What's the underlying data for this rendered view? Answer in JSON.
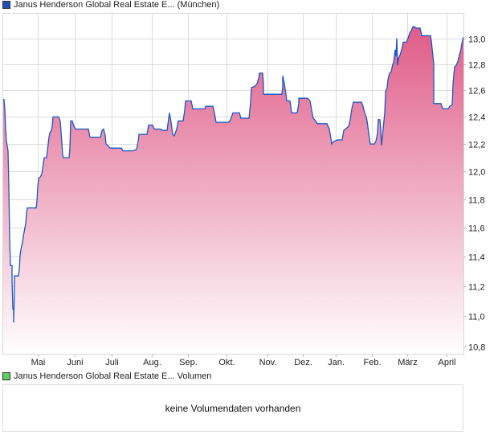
{
  "legend": {
    "price_label": "Janus Henderson Global Real Estate E... (München)",
    "price_color": "#1f4fb8",
    "volume_label": "Janus Henderson Global Real Estate E... Volumen",
    "volume_color": "#5fcf5f"
  },
  "volume": {
    "empty_message": "keine Volumendaten vorhanden"
  },
  "chart_data": {
    "type": "area",
    "title": "Janus Henderson Global Real Estate E... (München)",
    "xlabel": "",
    "ylabel": "",
    "y_scale": "log",
    "ylim": [
      10.75,
      13.2
    ],
    "xlim": [
      0,
      574
    ],
    "grid": true,
    "line_color": "#1a56c8",
    "fill_top_color": "#e05c88",
    "fill_bottom_color": "#ffffff",
    "y_ticks": [
      {
        "value": 10.8,
        "label": "10,8"
      },
      {
        "value": 11.0,
        "label": "11,0"
      },
      {
        "value": 11.2,
        "label": "11,2"
      },
      {
        "value": 11.4,
        "label": "11,4"
      },
      {
        "value": 11.6,
        "label": "11,6"
      },
      {
        "value": 11.8,
        "label": "11,8"
      },
      {
        "value": 12.0,
        "label": "12,0"
      },
      {
        "value": 12.2,
        "label": "12,2"
      },
      {
        "value": 12.4,
        "label": "12,4"
      },
      {
        "value": 12.6,
        "label": "12,6"
      },
      {
        "value": 12.8,
        "label": "12,8"
      },
      {
        "value": 13.0,
        "label": "13,0"
      }
    ],
    "x_ticks": [
      {
        "x": 44,
        "label": "Mai"
      },
      {
        "x": 90,
        "label": "Juni"
      },
      {
        "x": 136,
        "label": "Juli"
      },
      {
        "x": 186,
        "label": "Aug."
      },
      {
        "x": 231,
        "label": "Sep."
      },
      {
        "x": 279,
        "label": "Okt."
      },
      {
        "x": 330,
        "label": "Nov."
      },
      {
        "x": 374,
        "label": "Dez."
      },
      {
        "x": 415,
        "label": "Jan."
      },
      {
        "x": 460,
        "label": "Feb."
      },
      {
        "x": 504,
        "label": "März"
      },
      {
        "x": 553,
        "label": "April"
      }
    ],
    "points": [
      [
        0,
        12.53
      ],
      [
        2,
        12.53
      ],
      [
        3,
        12.46
      ],
      [
        4,
        12.31
      ],
      [
        5,
        12.22
      ],
      [
        7,
        12.15
      ],
      [
        8,
        11.89
      ],
      [
        9,
        11.52
      ],
      [
        10,
        11.34
      ],
      [
        12,
        11.34
      ],
      [
        12,
        11.24
      ],
      [
        13,
        11.05
      ],
      [
        14,
        11.04
      ],
      [
        14,
        10.96
      ],
      [
        15,
        11.19
      ],
      [
        15,
        11.27
      ],
      [
        20,
        11.27
      ],
      [
        21,
        11.31
      ],
      [
        22,
        11.41
      ],
      [
        23,
        11.45
      ],
      [
        25,
        11.5
      ],
      [
        26,
        11.54
      ],
      [
        27,
        11.57
      ],
      [
        29,
        11.63
      ],
      [
        30,
        11.7
      ],
      [
        31,
        11.74
      ],
      [
        42,
        11.74
      ],
      [
        43,
        11.79
      ],
      [
        44,
        11.89
      ],
      [
        45,
        11.95
      ],
      [
        47,
        11.96
      ],
      [
        49,
        11.98
      ],
      [
        50,
        12.02
      ],
      [
        52,
        12.1
      ],
      [
        55,
        12.1
      ],
      [
        56,
        12.15
      ],
      [
        57,
        12.2
      ],
      [
        58,
        12.25
      ],
      [
        59,
        12.28
      ],
      [
        61,
        12.3
      ],
      [
        62,
        12.33
      ],
      [
        63,
        12.4
      ],
      [
        70,
        12.4
      ],
      [
        72,
        12.37
      ],
      [
        74,
        12.21
      ],
      [
        75,
        12.12
      ],
      [
        76,
        12.1
      ],
      [
        83,
        12.1
      ],
      [
        84,
        12.17
      ],
      [
        85,
        12.37
      ],
      [
        87,
        12.37
      ],
      [
        89,
        12.33
      ],
      [
        91,
        12.31
      ],
      [
        107,
        12.31
      ],
      [
        109,
        12.25
      ],
      [
        122,
        12.25
      ],
      [
        124,
        12.3
      ],
      [
        126,
        12.31
      ],
      [
        128,
        12.26
      ],
      [
        129,
        12.2
      ],
      [
        131,
        12.19
      ],
      [
        134,
        12.17
      ],
      [
        148,
        12.17
      ],
      [
        150,
        12.15
      ],
      [
        157,
        12.15
      ],
      [
        162,
        12.15
      ],
      [
        167,
        12.16
      ],
      [
        169,
        12.22
      ],
      [
        170,
        12.27
      ],
      [
        180,
        12.27
      ],
      [
        182,
        12.34
      ],
      [
        187,
        12.34
      ],
      [
        189,
        12.31
      ],
      [
        197,
        12.31
      ],
      [
        199,
        12.3
      ],
      [
        205,
        12.3
      ],
      [
        207,
        12.39
      ],
      [
        208,
        12.43
      ],
      [
        210,
        12.36
      ],
      [
        212,
        12.27
      ],
      [
        214,
        12.26
      ],
      [
        217,
        12.31
      ],
      [
        219,
        12.37
      ],
      [
        225,
        12.37
      ],
      [
        227,
        12.45
      ],
      [
        228,
        12.52
      ],
      [
        235,
        12.52
      ],
      [
        237,
        12.46
      ],
      [
        252,
        12.46
      ],
      [
        253,
        12.48
      ],
      [
        262,
        12.48
      ],
      [
        264,
        12.43
      ],
      [
        266,
        12.36
      ],
      [
        282,
        12.36
      ],
      [
        284,
        12.38
      ],
      [
        287,
        12.43
      ],
      [
        295,
        12.43
      ],
      [
        297,
        12.39
      ],
      [
        307,
        12.39
      ],
      [
        309,
        12.51
      ],
      [
        310,
        12.62
      ],
      [
        314,
        12.63
      ],
      [
        317,
        12.65
      ],
      [
        319,
        12.69
      ],
      [
        320,
        12.73
      ],
      [
        324,
        12.73
      ],
      [
        325,
        12.65
      ],
      [
        325,
        12.57
      ],
      [
        348,
        12.57
      ],
      [
        349,
        12.63
      ],
      [
        349,
        12.71
      ],
      [
        351,
        12.65
      ],
      [
        353,
        12.57
      ],
      [
        354,
        12.52
      ],
      [
        358,
        12.52
      ],
      [
        359,
        12.48
      ],
      [
        360,
        12.43
      ],
      [
        367,
        12.43
      ],
      [
        369,
        12.5
      ],
      [
        369,
        12.54
      ],
      [
        380,
        12.54
      ],
      [
        383,
        12.52
      ],
      [
        385,
        12.45
      ],
      [
        387,
        12.39
      ],
      [
        390,
        12.37
      ],
      [
        392,
        12.35
      ],
      [
        404,
        12.35
      ],
      [
        407,
        12.31
      ],
      [
        409,
        12.24
      ],
      [
        410,
        12.2
      ],
      [
        411,
        12.21
      ],
      [
        413,
        12.22
      ],
      [
        417,
        12.23
      ],
      [
        423,
        12.23
      ],
      [
        425,
        12.3
      ],
      [
        427,
        12.31
      ],
      [
        431,
        12.33
      ],
      [
        433,
        12.38
      ],
      [
        435,
        12.46
      ],
      [
        437,
        12.51
      ],
      [
        447,
        12.51
      ],
      [
        449,
        12.48
      ],
      [
        451,
        12.43
      ],
      [
        453,
        12.4
      ],
      [
        454,
        12.37
      ],
      [
        456,
        12.28
      ],
      [
        457,
        12.24
      ],
      [
        458,
        12.2
      ],
      [
        463,
        12.2
      ],
      [
        465,
        12.22
      ],
      [
        467,
        12.28
      ],
      [
        468,
        12.38
      ],
      [
        470,
        12.38
      ],
      [
        471,
        12.31
      ],
      [
        472,
        12.19
      ],
      [
        474,
        12.31
      ],
      [
        476,
        12.43
      ],
      [
        477,
        12.59
      ],
      [
        479,
        12.62
      ],
      [
        480,
        12.68
      ],
      [
        482,
        12.73
      ],
      [
        484,
        12.74
      ],
      [
        486,
        12.8
      ],
      [
        487,
        12.81
      ],
      [
        489,
        12.91
      ],
      [
        490,
        12.86
      ],
      [
        491,
        13.0
      ],
      [
        492,
        12.79
      ],
      [
        493,
        12.84
      ],
      [
        495,
        12.87
      ],
      [
        497,
        12.91
      ],
      [
        499,
        12.97
      ],
      [
        503,
        12.97
      ],
      [
        505,
        13.0
      ],
      [
        507,
        13.04
      ],
      [
        509,
        13.06
      ],
      [
        511,
        13.09
      ],
      [
        513,
        13.09
      ],
      [
        515,
        13.08
      ],
      [
        520,
        13.08
      ],
      [
        522,
        13.02
      ],
      [
        533,
        13.02
      ],
      [
        534,
        12.98
      ],
      [
        535,
        12.92
      ],
      [
        537,
        12.8
      ],
      [
        537,
        12.5
      ],
      [
        546,
        12.5
      ],
      [
        547,
        12.48
      ],
      [
        549,
        12.46
      ],
      [
        555,
        12.46
      ],
      [
        557,
        12.48
      ],
      [
        560,
        12.49
      ],
      [
        561,
        12.65
      ],
      [
        563,
        12.78
      ],
      [
        565,
        12.79
      ],
      [
        567,
        12.82
      ],
      [
        569,
        12.87
      ],
      [
        571,
        12.92
      ],
      [
        572,
        12.96
      ],
      [
        574,
        13.01
      ]
    ]
  }
}
